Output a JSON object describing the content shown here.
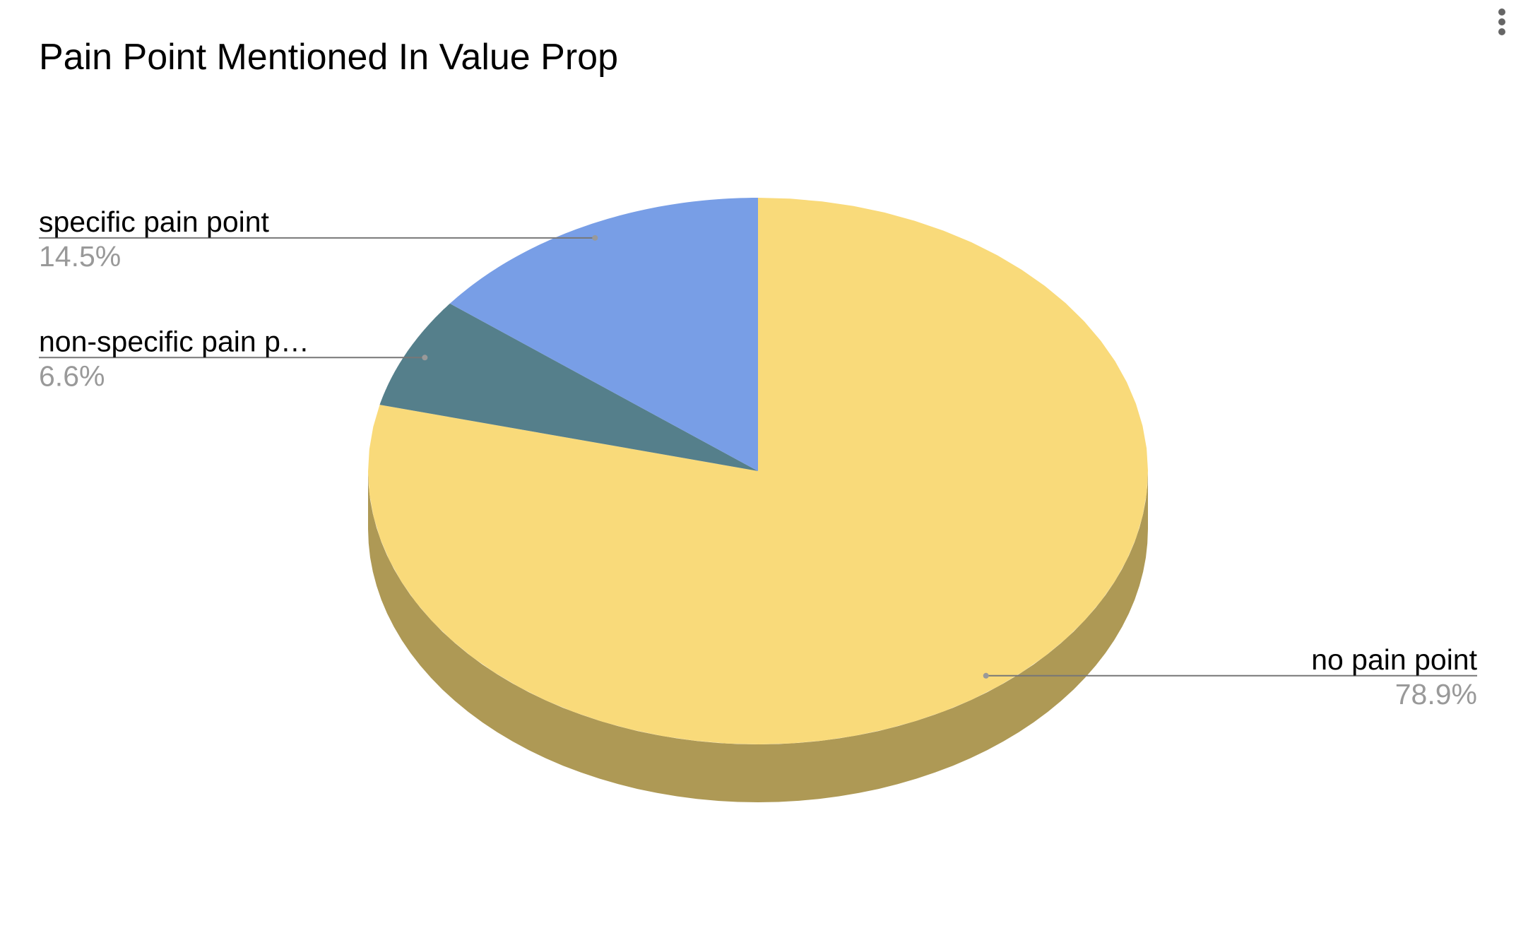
{
  "chart_data": {
    "type": "pie",
    "title": "Pain Point Mentioned In Value Prop",
    "categories": [
      "no pain point",
      "non-specific pain p…",
      "specific pain point"
    ],
    "values": [
      78.9,
      6.6,
      14.5
    ],
    "value_labels": [
      "78.9%",
      "6.6%",
      "14.5%"
    ],
    "colors": [
      "#f9da7a",
      "#557f8b",
      "#789ee6"
    ],
    "three_d": true
  }
}
